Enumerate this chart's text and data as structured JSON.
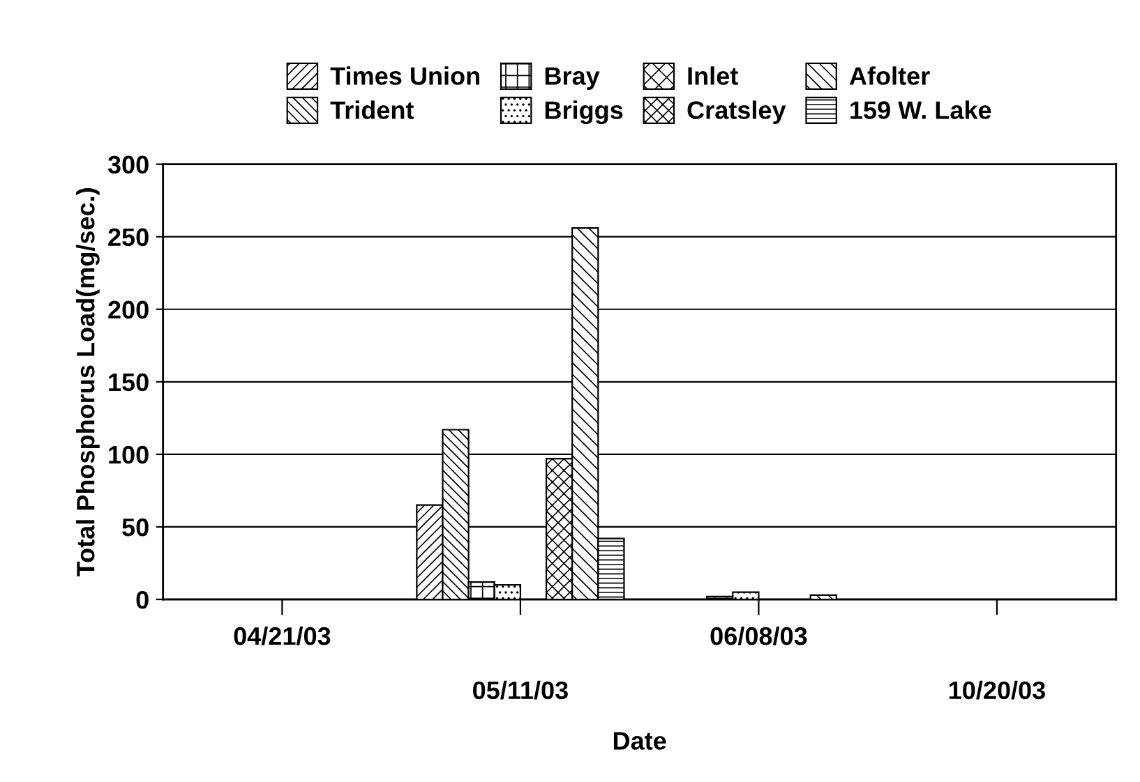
{
  "chart_data": {
    "type": "bar",
    "xlabel": "Date",
    "ylabel": "Total Phosphorus Load(mg/sec.)",
    "categories": [
      "04/21/03",
      "05/11/03",
      "06/08/03",
      "10/20/03"
    ],
    "series": [
      {
        "name": "Times Union",
        "color": "#000000",
        "values": [
          null,
          65,
          null,
          null
        ]
      },
      {
        "name": "Trident",
        "color": "#000000",
        "values": [
          null,
          117,
          null,
          null
        ]
      },
      {
        "name": "Bray",
        "color": "#000000",
        "values": [
          null,
          12,
          2,
          null
        ]
      },
      {
        "name": "Briggs",
        "color": "#000000",
        "values": [
          null,
          10,
          5,
          null
        ]
      },
      {
        "name": "Inlet",
        "color": "#000000",
        "values": [
          null,
          null,
          null,
          null
        ]
      },
      {
        "name": "Cratsley",
        "color": "#000000",
        "values": [
          null,
          97,
          null,
          null
        ]
      },
      {
        "name": "Afolter",
        "color": "#000000",
        "values": [
          null,
          256,
          3,
          null
        ]
      },
      {
        "name": "159 W. Lake",
        "color": "#000000",
        "values": [
          null,
          42,
          null,
          null
        ]
      }
    ],
    "ylim": [
      0,
      300
    ],
    "yticks": [
      0,
      50,
      100,
      150,
      200,
      250,
      300
    ],
    "grid": "y",
    "legend": "top"
  }
}
